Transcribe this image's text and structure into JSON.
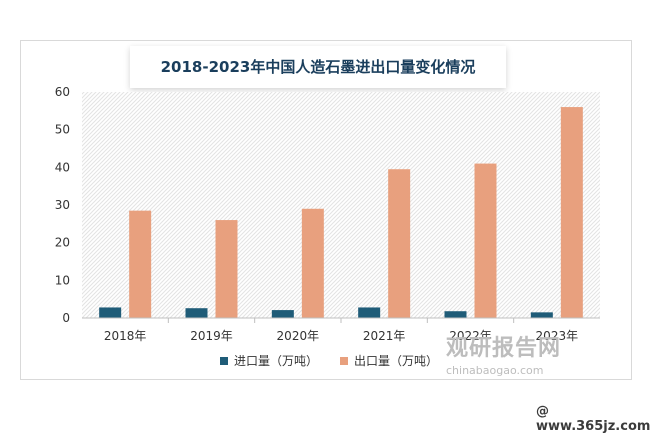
{
  "title": "2018-2023年中国人造石墨进出口量变化情况",
  "chart_data": {
    "type": "bar",
    "categories": [
      "2018年",
      "2019年",
      "2020年",
      "2021年",
      "2022年",
      "2023年"
    ],
    "series": [
      {
        "name": "进口量（万吨）",
        "values": [
          2.8,
          2.6,
          2.1,
          2.8,
          1.8,
          1.5
        ],
        "color": "#1f5c78"
      },
      {
        "name": "出口量（万吨）",
        "values": [
          28.5,
          26.0,
          29.0,
          39.5,
          41.0,
          56.0
        ],
        "color": "#e8a07e"
      }
    ],
    "ylim": [
      0,
      60
    ],
    "yticks": [
      0,
      10,
      20,
      30,
      40,
      50,
      60
    ],
    "grid": false,
    "legend": "bottom"
  },
  "watermark": {
    "brand": "观研报告网",
    "url": "chinabaogao.com",
    "site": "@ www.365jz.com"
  }
}
